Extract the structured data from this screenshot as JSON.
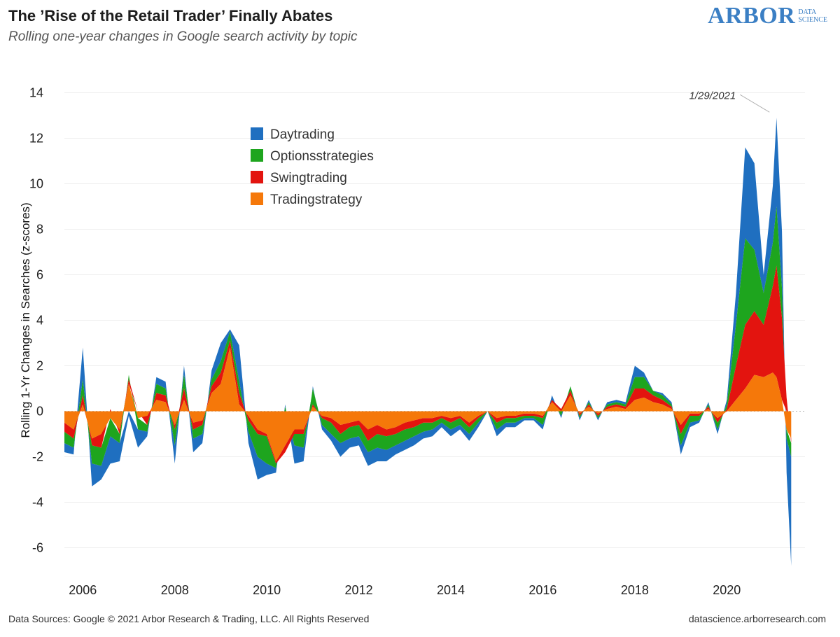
{
  "header": {
    "title": "The ’Rise of the Retail Trader’ Finally Abates",
    "subtitle": "Rolling one-year changes in Google search activity by topic"
  },
  "logo": {
    "main": "ARBOR",
    "line1": "DATA",
    "line2": "SCIENCE"
  },
  "footer": {
    "left": "Data Sources: Google © 2021 Arbor Research & Trading, LLC. All Rights Reserved",
    "right": "datascience.arborresearch.com"
  },
  "colors": {
    "Daytrading": "#1f6fc0",
    "Optionsstrategies": "#1ea51e",
    "Swingtrading": "#e3140f",
    "Tradingstrategy": "#f5780a",
    "grid": "#eeeeee"
  },
  "chart_data": {
    "type": "area",
    "stacked": true,
    "title": "The ’Rise of the Retail Trader’ Finally Abates",
    "subtitle": "Rolling one-year changes in Google search activity by topic",
    "xlabel": "",
    "ylabel": "Rolling 1-Yr Changes in Searches (z-scores)",
    "ylim": [
      -7,
      15
    ],
    "xlim": [
      2005.6,
      2021.7
    ],
    "yticks": [
      14,
      12,
      10,
      8,
      6,
      4,
      2,
      0,
      -2,
      -4,
      -6
    ],
    "xticks": [
      "2006",
      "2008",
      "2010",
      "2012",
      "2014",
      "2016",
      "2018",
      "2020"
    ],
    "grid": "horizontal",
    "legend_position": "upper-left",
    "annotation": {
      "text": "1/29/2021",
      "x": 2021.08,
      "y": 12.9
    },
    "x": [
      2005.6,
      2005.8,
      2006.0,
      2006.2,
      2006.4,
      2006.6,
      2006.8,
      2007.0,
      2007.2,
      2007.4,
      2007.6,
      2007.8,
      2008.0,
      2008.2,
      2008.4,
      2008.6,
      2008.8,
      2009.0,
      2009.2,
      2009.4,
      2009.6,
      2009.8,
      2010.0,
      2010.2,
      2010.4,
      2010.6,
      2010.8,
      2011.0,
      2011.2,
      2011.4,
      2011.6,
      2011.8,
      2012.0,
      2012.2,
      2012.4,
      2012.6,
      2012.8,
      2013.0,
      2013.2,
      2013.4,
      2013.6,
      2013.8,
      2014.0,
      2014.2,
      2014.4,
      2014.6,
      2014.8,
      2015.0,
      2015.2,
      2015.4,
      2015.6,
      2015.8,
      2016.0,
      2016.2,
      2016.4,
      2016.6,
      2016.8,
      2017.0,
      2017.2,
      2017.4,
      2017.6,
      2017.8,
      2018.0,
      2018.2,
      2018.4,
      2018.6,
      2018.8,
      2019.0,
      2019.2,
      2019.4,
      2019.6,
      2019.8,
      2020.0,
      2020.2,
      2020.4,
      2020.6,
      2020.8,
      2021.0,
      2021.08,
      2021.2,
      2021.3,
      2021.4
    ],
    "series": [
      {
        "name": "Tradingstrategy",
        "values": [
          -0.5,
          -0.8,
          0.3,
          -1.2,
          -1.0,
          -0.3,
          -0.8,
          1.2,
          -0.3,
          -0.2,
          0.5,
          0.4,
          -0.6,
          0.5,
          -0.5,
          -0.4,
          0.8,
          1.2,
          2.8,
          0.3,
          -0.2,
          -0.8,
          -1.0,
          -2.2,
          -1.5,
          -0.8,
          -0.8,
          0.2,
          -0.2,
          -0.3,
          -0.6,
          -0.5,
          -0.4,
          -0.8,
          -0.6,
          -0.8,
          -0.7,
          -0.5,
          -0.4,
          -0.3,
          -0.3,
          -0.2,
          -0.3,
          -0.2,
          -0.5,
          -0.2,
          0.0,
          -0.3,
          -0.2,
          -0.2,
          -0.1,
          -0.1,
          -0.2,
          0.4,
          0.0,
          0.7,
          -0.1,
          0.2,
          -0.1,
          0.1,
          0.2,
          0.1,
          0.5,
          0.6,
          0.4,
          0.3,
          0.1,
          -0.6,
          -0.1,
          -0.1,
          0.1,
          -0.3,
          0.0,
          0.5,
          1.0,
          1.6,
          1.5,
          1.7,
          1.5,
          0.5,
          -0.8,
          -1.2
        ]
      },
      {
        "name": "Swingtrading",
        "values": [
          -0.4,
          -0.4,
          0.4,
          -0.3,
          -0.6,
          0.1,
          -0.2,
          0.2,
          0.0,
          -0.4,
          0.3,
          0.3,
          -0.2,
          0.5,
          -0.3,
          -0.2,
          0.3,
          0.5,
          0.3,
          0.5,
          -0.2,
          -0.2,
          -0.1,
          -0.1,
          -0.3,
          -0.2,
          -0.2,
          0.1,
          -0.1,
          -0.2,
          -0.4,
          -0.2,
          -0.2,
          -0.5,
          -0.4,
          -0.3,
          -0.3,
          -0.3,
          -0.3,
          -0.2,
          -0.2,
          -0.1,
          -0.2,
          -0.1,
          -0.2,
          -0.1,
          0.0,
          -0.2,
          -0.1,
          -0.1,
          -0.1,
          -0.1,
          -0.1,
          0.1,
          0.1,
          0.2,
          -0.1,
          0.1,
          -0.1,
          0.1,
          0.1,
          0.1,
          0.5,
          0.4,
          0.3,
          0.2,
          0.1,
          -0.4,
          -0.1,
          -0.1,
          0.1,
          -0.2,
          0.1,
          1.5,
          2.8,
          2.8,
          2.3,
          3.8,
          4.9,
          3.6,
          0.6,
          -0.2
        ]
      },
      {
        "name": "Optionsstrategies",
        "values": [
          -0.5,
          -0.4,
          0.7,
          -0.8,
          -0.8,
          -0.8,
          -0.4,
          0.2,
          -0.5,
          -0.3,
          0.4,
          0.3,
          -0.7,
          0.6,
          -0.4,
          -0.4,
          0.3,
          0.5,
          0.4,
          0.5,
          -0.5,
          -1.0,
          -1.2,
          -0.2,
          0.2,
          -0.5,
          -0.6,
          0.7,
          -0.3,
          -0.5,
          -0.4,
          -0.5,
          -0.5,
          -0.5,
          -0.6,
          -0.6,
          -0.5,
          -0.5,
          -0.4,
          -0.4,
          -0.3,
          -0.2,
          -0.3,
          -0.3,
          -0.3,
          -0.2,
          0.0,
          -0.3,
          -0.2,
          -0.2,
          -0.1,
          -0.1,
          -0.3,
          0.0,
          -0.2,
          0.2,
          -0.1,
          0.1,
          -0.1,
          0.1,
          0.1,
          0.1,
          0.5,
          0.5,
          0.2,
          0.2,
          0.1,
          -0.5,
          -0.3,
          -0.2,
          0.1,
          -0.3,
          0.2,
          1.8,
          3.8,
          2.7,
          1.4,
          1.9,
          2.6,
          1.3,
          -0.4,
          -0.6
        ]
      },
      {
        "name": "Daytrading",
        "values": [
          -0.4,
          -0.3,
          1.4,
          -1.0,
          -0.6,
          -1.2,
          -0.8,
          -0.2,
          -0.8,
          -0.2,
          0.3,
          0.3,
          -0.8,
          0.4,
          -0.6,
          -0.4,
          0.4,
          0.8,
          0.1,
          1.6,
          -0.5,
          -1.0,
          -0.5,
          -0.2,
          0.1,
          -0.8,
          -0.6,
          0.1,
          -0.2,
          -0.3,
          -0.6,
          -0.4,
          -0.4,
          -0.6,
          -0.6,
          -0.5,
          -0.4,
          -0.4,
          -0.4,
          -0.3,
          -0.3,
          -0.2,
          -0.3,
          -0.2,
          -0.3,
          -0.2,
          0.0,
          -0.3,
          -0.2,
          -0.2,
          -0.1,
          -0.1,
          -0.2,
          0.2,
          -0.1,
          0.0,
          -0.1,
          0.1,
          -0.1,
          0.1,
          0.1,
          0.1,
          0.5,
          0.2,
          0.0,
          0.1,
          0.1,
          -0.4,
          -0.2,
          -0.1,
          0.1,
          -0.2,
          0.2,
          1.4,
          4.0,
          3.8,
          0.8,
          2.5,
          3.9,
          2.5,
          -1.5,
          -4.8
        ]
      }
    ]
  }
}
